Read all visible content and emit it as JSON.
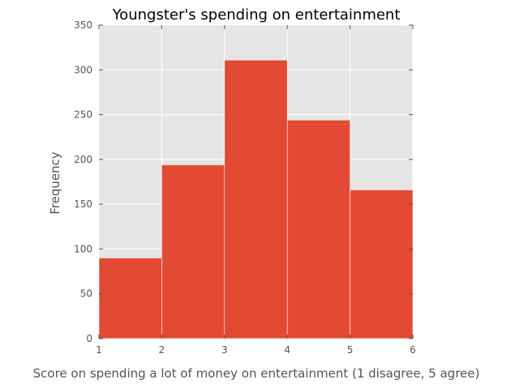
{
  "chart_data": {
    "type": "bar",
    "title": "Youngster's spending on entertainment",
    "xlabel": "Score on spending a lot of money on entertainment (1 disagree, 5 agree)",
    "ylabel": "Frequency",
    "bins": [
      {
        "start": 1,
        "end": 2,
        "value": 90
      },
      {
        "start": 2,
        "end": 3,
        "value": 194
      },
      {
        "start": 3,
        "end": 4,
        "value": 311
      },
      {
        "start": 4,
        "end": 5,
        "value": 244
      },
      {
        "start": 5,
        "end": 6,
        "value": 166
      }
    ],
    "xlim": [
      1,
      6
    ],
    "ylim": [
      0,
      350
    ],
    "xticks": [
      "1",
      "2",
      "3",
      "4",
      "5",
      "6"
    ],
    "yticks": [
      "0",
      "50",
      "100",
      "150",
      "200",
      "250",
      "300",
      "350"
    ],
    "grid": true,
    "colors": {
      "bar": "#e24a33",
      "plot_background": "#e5e5e5",
      "grid": "#ffffff"
    }
  }
}
